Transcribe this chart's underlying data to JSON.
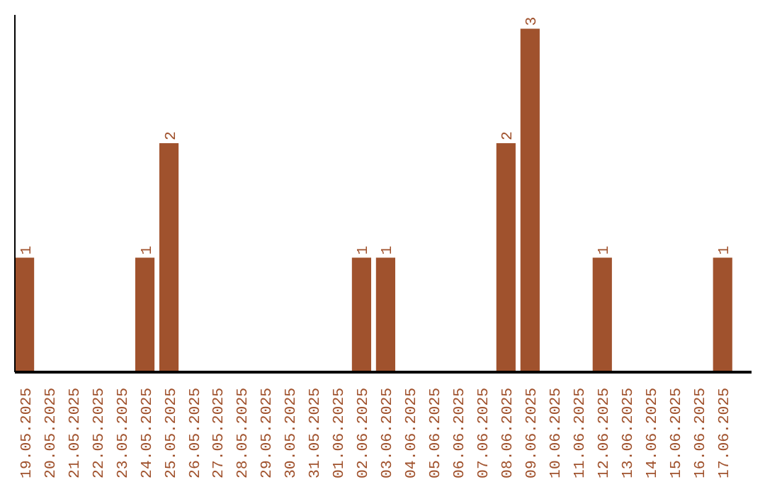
{
  "chart_data": {
    "type": "bar",
    "categories": [
      "19.05.2025",
      "20.05.2025",
      "21.05.2025",
      "22.05.2025",
      "23.05.2025",
      "24.05.2025",
      "25.05.2025",
      "26.05.2025",
      "27.05.2025",
      "28.05.2025",
      "29.05.2025",
      "30.05.2025",
      "31.05.2025",
      "01.06.2025",
      "02.06.2025",
      "03.06.2025",
      "04.06.2025",
      "05.06.2025",
      "06.06.2025",
      "07.06.2025",
      "08.06.2025",
      "09.06.2025",
      "10.06.2025",
      "11.06.2025",
      "12.06.2025",
      "13.06.2025",
      "14.06.2025",
      "15.06.2025",
      "16.06.2025",
      "17.06.2025"
    ],
    "values": [
      1,
      0,
      0,
      0,
      0,
      1,
      2,
      0,
      0,
      0,
      0,
      0,
      0,
      0,
      1,
      1,
      0,
      0,
      0,
      0,
      2,
      3,
      0,
      0,
      1,
      0,
      0,
      0,
      0,
      1
    ],
    "value_labels": [
      "1",
      null,
      null,
      null,
      null,
      "1",
      "2",
      null,
      null,
      null,
      null,
      null,
      null,
      null,
      "1",
      "1",
      null,
      null,
      null,
      null,
      "2",
      "3",
      null,
      null,
      "1",
      null,
      null,
      null,
      null,
      "1"
    ],
    "color": "#a0522d",
    "ylim": [
      0,
      3.12
    ],
    "tick_labels": "x",
    "grid": false
  }
}
